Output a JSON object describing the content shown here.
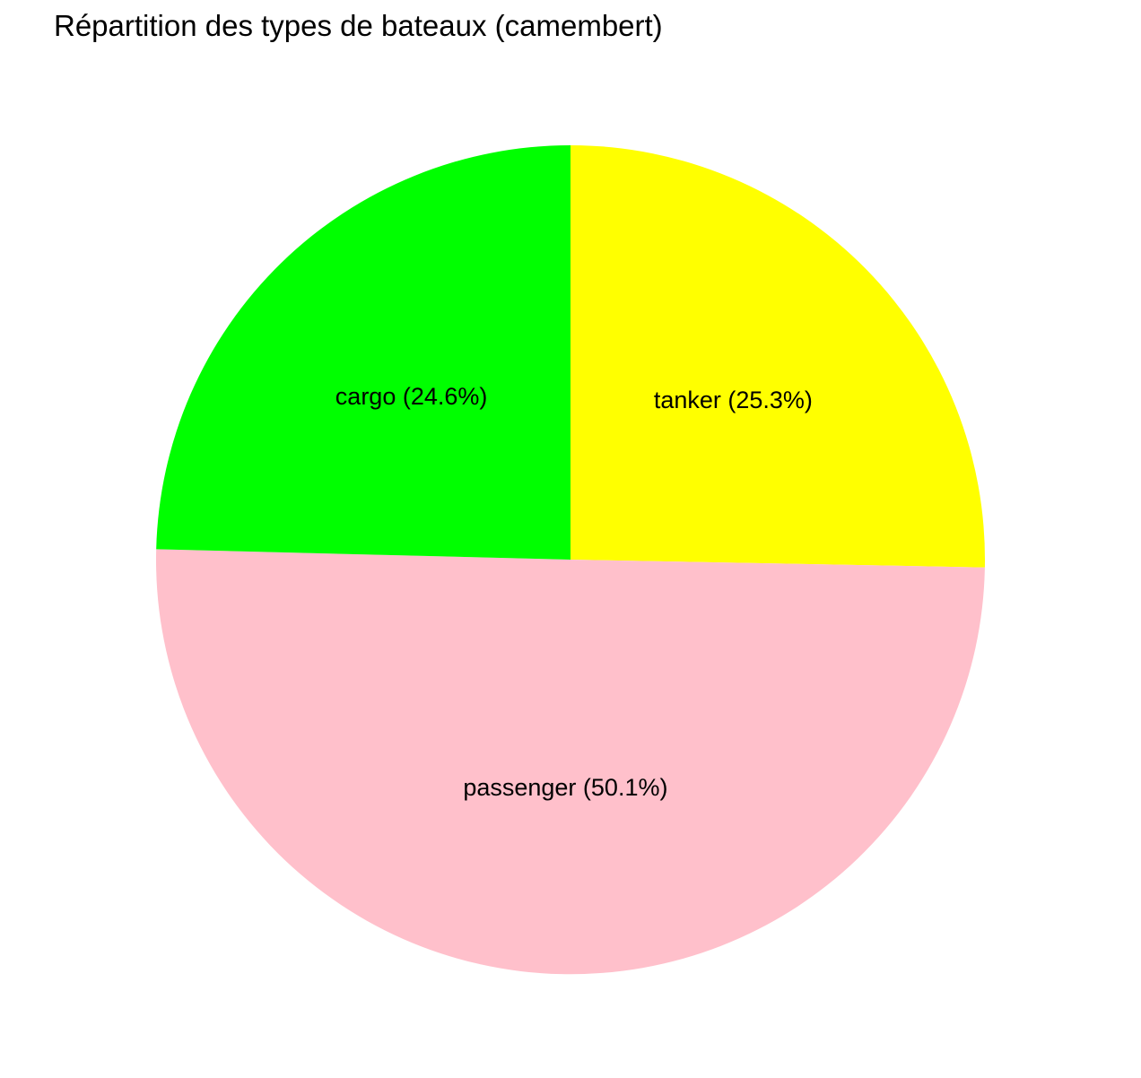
{
  "chart_data": {
    "type": "pie",
    "title": "Répartition des types de bateaux (camembert)",
    "slices": [
      {
        "name": "tanker",
        "value": 25.3,
        "label": "tanker (25.3%)",
        "color": "#ffff00"
      },
      {
        "name": "passenger",
        "value": 50.1,
        "label": "passenger (50.1%)",
        "color": "#ffc0cb"
      },
      {
        "name": "cargo",
        "value": 24.6,
        "label": "cargo (24.6%)",
        "color": "#00ff00"
      }
    ],
    "start": "top",
    "direction": "clockwise",
    "legend": "none"
  }
}
